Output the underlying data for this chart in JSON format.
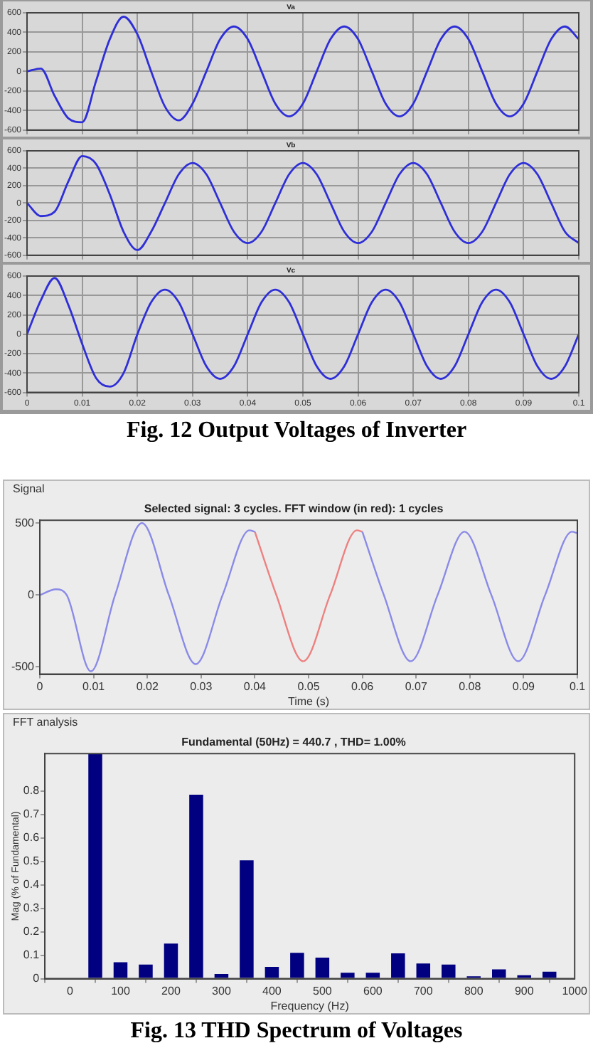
{
  "chart_data": [
    {
      "type": "line",
      "title": "Va",
      "x": [
        0,
        0.0025,
        0.005,
        0.0075,
        0.01,
        0.0125,
        0.015,
        0.0175,
        0.02,
        0.0225,
        0.025,
        0.0275,
        0.03,
        0.0325,
        0.035,
        0.0375,
        0.04,
        0.0425,
        0.045,
        0.0475,
        0.05,
        0.0525,
        0.055,
        0.0575,
        0.06,
        0.0625,
        0.065,
        0.0675,
        0.07,
        0.0725,
        0.075,
        0.0775,
        0.08,
        0.0825,
        0.085,
        0.0875,
        0.09,
        0.0925,
        0.095,
        0.0975,
        0.1
      ],
      "series": [
        {
          "color": "#2f2fd8",
          "values": [
            0,
            30,
            -250,
            -480,
            -520,
            -100,
            330,
            560,
            380,
            0,
            -360,
            -500,
            -330,
            0,
            330,
            460,
            330,
            0,
            -330,
            -460,
            -330,
            0,
            330,
            460,
            330,
            0,
            -330,
            -460,
            -330,
            0,
            330,
            460,
            330,
            0,
            -330,
            -460,
            -330,
            0,
            330,
            460,
            330
          ]
        }
      ],
      "xlim": [
        0,
        0.1
      ],
      "xticks": [
        0,
        0.01,
        0.02,
        0.03,
        0.04,
        0.05,
        0.06,
        0.07,
        0.08,
        0.09,
        0.1
      ],
      "ylim": [
        -600,
        600
      ],
      "yticks": [
        -600,
        -400,
        -200,
        0,
        200,
        400,
        600
      ],
      "grid": true,
      "tick_labels": "y",
      "marker": "none"
    },
    {
      "type": "line",
      "title": "Vb",
      "x": [
        0,
        0.0025,
        0.005,
        0.0075,
        0.01,
        0.0125,
        0.015,
        0.0175,
        0.02,
        0.0225,
        0.025,
        0.0275,
        0.03,
        0.0325,
        0.035,
        0.0375,
        0.04,
        0.0425,
        0.045,
        0.0475,
        0.05,
        0.0525,
        0.055,
        0.0575,
        0.06,
        0.0625,
        0.065,
        0.0675,
        0.07,
        0.0725,
        0.075,
        0.0775,
        0.08,
        0.0825,
        0.085,
        0.0875,
        0.09,
        0.0925,
        0.095,
        0.0975,
        0.1
      ],
      "series": [
        {
          "color": "#2f2fd8",
          "values": [
            0,
            -150,
            -100,
            250,
            540,
            450,
            100,
            -330,
            -540,
            -330,
            0,
            330,
            460,
            330,
            0,
            -330,
            -460,
            -330,
            0,
            330,
            460,
            330,
            0,
            -330,
            -460,
            -330,
            0,
            330,
            460,
            330,
            0,
            -330,
            -460,
            -330,
            0,
            330,
            460,
            330,
            0,
            -330,
            -460
          ]
        }
      ],
      "xlim": [
        0,
        0.1
      ],
      "xticks": [
        0,
        0.01,
        0.02,
        0.03,
        0.04,
        0.05,
        0.06,
        0.07,
        0.08,
        0.09,
        0.1
      ],
      "ylim": [
        -600,
        600
      ],
      "yticks": [
        -600,
        -400,
        -200,
        0,
        200,
        400,
        600
      ],
      "grid": true,
      "tick_labels": "y",
      "marker": "none"
    },
    {
      "type": "line",
      "title": "Vc",
      "x": [
        0,
        0.0025,
        0.005,
        0.0075,
        0.01,
        0.0125,
        0.015,
        0.0175,
        0.02,
        0.0225,
        0.025,
        0.0275,
        0.03,
        0.0325,
        0.035,
        0.0375,
        0.04,
        0.0425,
        0.045,
        0.0475,
        0.05,
        0.0525,
        0.055,
        0.0575,
        0.06,
        0.0625,
        0.065,
        0.0675,
        0.07,
        0.0725,
        0.075,
        0.0775,
        0.08,
        0.0825,
        0.085,
        0.0875,
        0.09,
        0.0925,
        0.095,
        0.0975,
        0.1
      ],
      "series": [
        {
          "color": "#2f2fd8",
          "values": [
            0,
            350,
            580,
            300,
            -100,
            -450,
            -540,
            -400,
            0,
            330,
            460,
            330,
            0,
            -330,
            -460,
            -330,
            0,
            330,
            460,
            330,
            0,
            -330,
            -460,
            -330,
            0,
            330,
            460,
            330,
            0,
            -330,
            -460,
            -330,
            0,
            330,
            460,
            330,
            0,
            -330,
            -460,
            -330,
            0
          ]
        }
      ],
      "xlim": [
        0,
        0.1
      ],
      "xticks": [
        0,
        0.01,
        0.02,
        0.03,
        0.04,
        0.05,
        0.06,
        0.07,
        0.08,
        0.09,
        0.1
      ],
      "ylim": [
        -600,
        600
      ],
      "yticks": [
        -600,
        -400,
        -200,
        0,
        200,
        400,
        600
      ],
      "grid": true,
      "marker": "none",
      "annotations": [
        "Fig. 12 Output Voltages of Inverter"
      ]
    },
    {
      "type": "line",
      "title": "Selected signal: 3 cycles. FFT window (in red): 1 cycles",
      "xlabel": "Time (s)",
      "series": [
        {
          "color": "#8a8ae8",
          "x": [
            0,
            0.003,
            0.005,
            0.0095,
            0.014,
            0.019,
            0.024,
            0.029,
            0.034,
            0.039,
            0.04,
            0.05,
            0.06,
            0.064,
            0.069,
            0.074,
            0.079,
            0.084,
            0.089,
            0.094,
            0.099,
            0.1
          ],
          "values": [
            0,
            40,
            0,
            -530,
            0,
            500,
            0,
            -480,
            0,
            450,
            440,
            null,
            440,
            0,
            -460,
            0,
            440,
            0,
            -460,
            0,
            440,
            430
          ]
        },
        {
          "color": "#ee8080",
          "x": [
            0.04,
            0.044,
            0.049,
            0.054,
            0.059,
            0.06
          ],
          "values": [
            440,
            0,
            -460,
            0,
            450,
            440
          ]
        }
      ],
      "xlim": [
        0,
        0.1
      ],
      "xticks": [
        0,
        0.01,
        0.02,
        0.03,
        0.04,
        0.05,
        0.06,
        0.07,
        0.08,
        0.09,
        0.1
      ],
      "ylim": [
        -550,
        520
      ],
      "yticks": [
        -500,
        0,
        500
      ],
      "marker": "none",
      "annotations": [
        "Signal"
      ]
    },
    {
      "type": "bar",
      "title": "Fundamental (50Hz) = 440.7 , THD= 1.00%",
      "xlabel": "Frequency (Hz)",
      "ylabel": "Mag (% of Fundamental)",
      "x": [
        0,
        50,
        100,
        150,
        200,
        250,
        300,
        350,
        400,
        450,
        500,
        550,
        600,
        650,
        700,
        750,
        800,
        850,
        900,
        950
      ],
      "values": [
        0.003,
        0.96,
        0.07,
        0.06,
        0.15,
        0.785,
        0.02,
        0.505,
        0.05,
        0.11,
        0.09,
        0.025,
        0.025,
        0.108,
        0.065,
        0.06,
        0.01,
        0.04,
        0.015,
        0.03
      ],
      "color": "#000080",
      "xlim": [
        -50,
        1000
      ],
      "xticks": [
        0,
        100,
        200,
        300,
        400,
        500,
        600,
        700,
        800,
        900,
        1000
      ],
      "ylim": [
        0,
        0.96
      ],
      "yticks": [
        0,
        0.1,
        0.2,
        0.3,
        0.4,
        0.5,
        0.6,
        0.7,
        0.8
      ],
      "annotations": [
        "FFT analysis",
        "Fig. 13 THD Spectrum of Voltages"
      ]
    }
  ]
}
